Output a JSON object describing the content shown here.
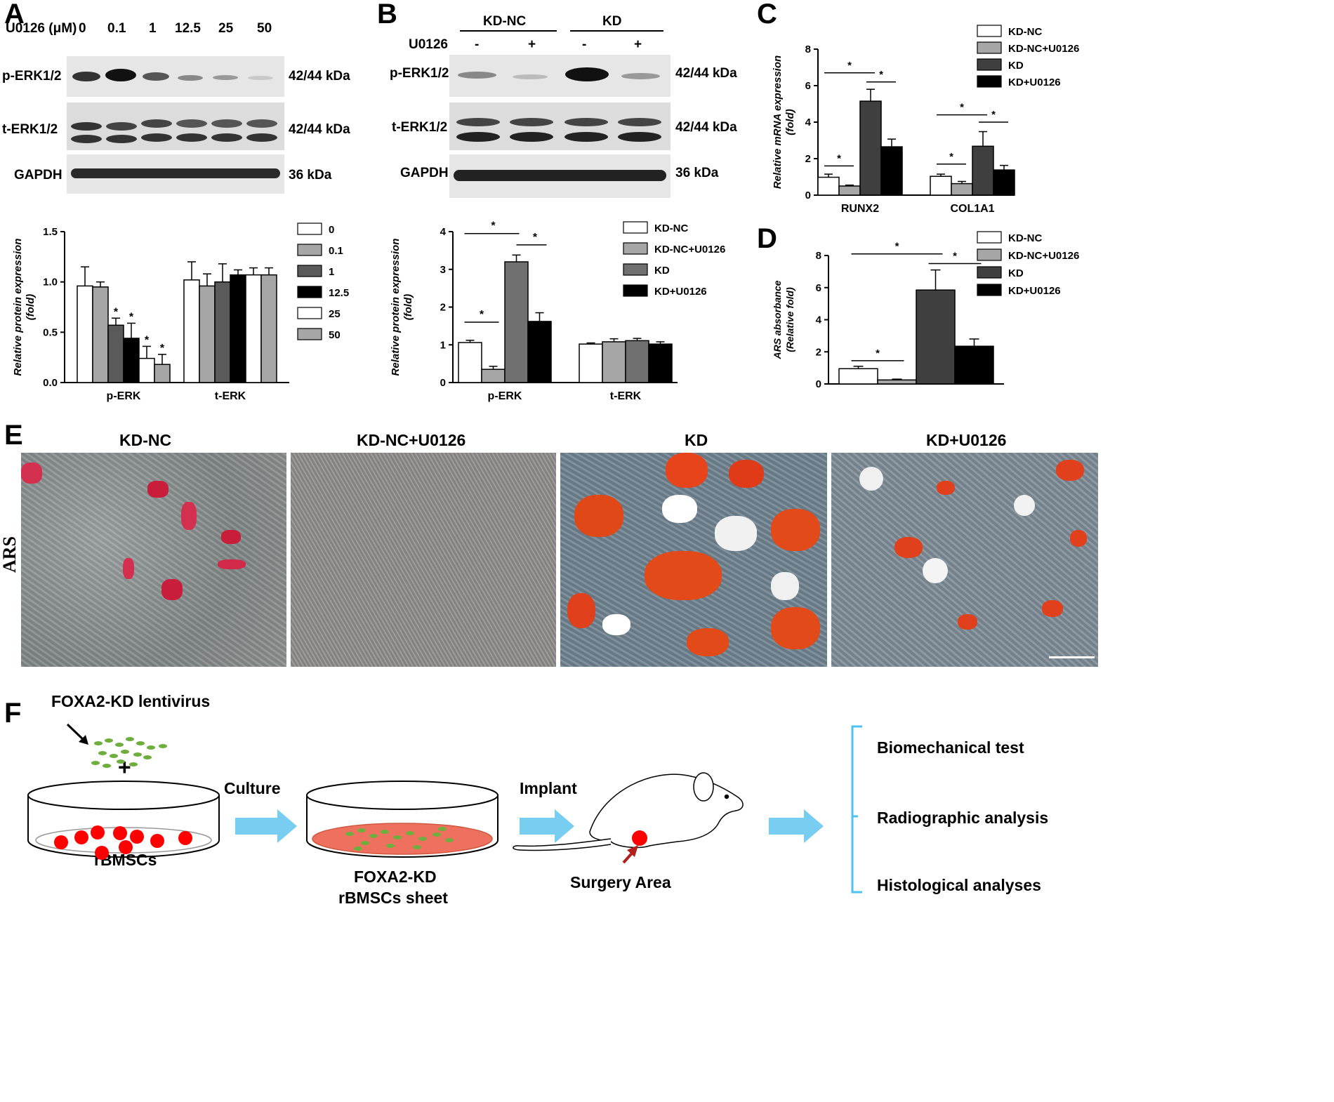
{
  "panels": {
    "A": {
      "letter": "A",
      "treatment_label": "U0126 (μM)",
      "doses": [
        "0",
        "0.1",
        "1",
        "12.5",
        "25",
        "50"
      ],
      "rows": [
        {
          "name": "p-ERK1/2",
          "size": "42/44 kDa"
        },
        {
          "name": "t-ERK1/2",
          "size": "42/44 kDa"
        },
        {
          "name": "GAPDH",
          "size": "36 kDa"
        }
      ]
    },
    "B": {
      "letter": "B",
      "group1": "KD-NC",
      "group2": "KD",
      "treatment_label": "U0126",
      "signs": [
        "-",
        "+",
        "-",
        "+"
      ],
      "rows": [
        {
          "name": "p-ERK1/2",
          "size": "42/44 kDa"
        },
        {
          "name": "t-ERK1/2",
          "size": "42/44 kDa"
        },
        {
          "name": "GAPDH",
          "size": "36 kDa"
        }
      ]
    },
    "C": {
      "letter": "C"
    },
    "D": {
      "letter": "D"
    },
    "E": {
      "letter": "E",
      "row_label": "ARS",
      "images": [
        "KD-NC",
        "KD-NC+U0126",
        "KD",
        "KD+U0126"
      ]
    },
    "F": {
      "letter": "F",
      "virus": "FOXA2-KD lentivirus",
      "plus": "+",
      "cells": "rBMSCs",
      "culture": "Culture",
      "sheet_line1": "FOXA2-KD",
      "sheet_line2": "rBMSCs sheet",
      "implant": "Implant",
      "surgery": "Surgery Area",
      "outcomes": [
        "Biomechanical test",
        "Radiographic analysis",
        "Histological analyses"
      ]
    }
  },
  "chart_data": [
    {
      "id": "A-chart",
      "type": "bar",
      "ylabel": "Relative protein expression (fold)",
      "ylim": [
        0,
        1.5
      ],
      "yticks": [
        "0.0",
        "0.5",
        "1.0",
        "1.5"
      ],
      "categories": [
        "p-ERK",
        "t-ERK"
      ],
      "series": [
        {
          "name": "0",
          "values": [
            0.96,
            1.02
          ],
          "errors": [
            0.19,
            0.18
          ],
          "color": "#ffffff"
        },
        {
          "name": "0.1",
          "values": [
            0.95,
            0.96
          ],
          "errors": [
            0.05,
            0.12
          ],
          "color": "#a6a6a6"
        },
        {
          "name": "1",
          "values": [
            0.57,
            1.0
          ],
          "errors": [
            0.07,
            0.18
          ],
          "color": "#5a5a5a"
        },
        {
          "name": "12.5",
          "values": [
            0.44,
            1.07
          ],
          "errors": [
            0.15,
            0.05
          ],
          "color": "#000000"
        },
        {
          "name": "25",
          "values": [
            0.24,
            1.07
          ],
          "errors": [
            0.12,
            0.07
          ],
          "color": "#ffffff"
        },
        {
          "name": "50",
          "values": [
            0.18,
            1.07
          ],
          "errors": [
            0.1,
            0.07
          ],
          "color": "#a6a6a6"
        }
      ],
      "annotations": [
        "*",
        "*",
        "*",
        "*"
      ],
      "legend": "right"
    },
    {
      "id": "B-chart",
      "type": "bar",
      "ylabel": "Relative protein expression (fold)",
      "ylim": [
        0,
        4
      ],
      "yticks": [
        "0",
        "1",
        "2",
        "3",
        "4"
      ],
      "categories": [
        "p-ERK",
        "t-ERK"
      ],
      "series": [
        {
          "name": "KD-NC",
          "values": [
            1.06,
            1.02
          ],
          "errors": [
            0.06,
            0.03
          ],
          "color": "#ffffff"
        },
        {
          "name": "KD-NC+U0126",
          "values": [
            0.35,
            1.08
          ],
          "errors": [
            0.08,
            0.08
          ],
          "color": "#a6a6a6"
        },
        {
          "name": "KD",
          "values": [
            3.2,
            1.11
          ],
          "errors": [
            0.18,
            0.06
          ],
          "color": "#707070"
        },
        {
          "name": "KD+U0126",
          "values": [
            1.62,
            1.02
          ],
          "errors": [
            0.23,
            0.06
          ],
          "color": "#000000"
        }
      ],
      "annotations": [
        "*",
        "*",
        "*"
      ],
      "legend": "right"
    },
    {
      "id": "C-chart",
      "type": "bar",
      "ylabel": "Relative mRNA expression (fold)",
      "ylim": [
        0,
        8
      ],
      "yticks": [
        "0",
        "2",
        "4",
        "6",
        "8"
      ],
      "categories": [
        "RUNX2",
        "COL1A1"
      ],
      "series": [
        {
          "name": "KD-NC",
          "values": [
            0.98,
            1.03
          ],
          "errors": [
            0.17,
            0.12
          ],
          "color": "#ffffff"
        },
        {
          "name": "KD-NC+U0126",
          "values": [
            0.5,
            0.63
          ],
          "errors": [
            0.05,
            0.12
          ],
          "color": "#a6a6a6"
        },
        {
          "name": "KD",
          "values": [
            5.15,
            2.68
          ],
          "errors": [
            0.65,
            0.8
          ],
          "color": "#3f3f3f"
        },
        {
          "name": "KD+U0126",
          "values": [
            2.65,
            1.38
          ],
          "errors": [
            0.42,
            0.25
          ],
          "color": "#000000"
        }
      ],
      "annotations": [
        "*",
        "*",
        "*",
        "*",
        "*",
        "*"
      ],
      "legend": "right"
    },
    {
      "id": "D-chart",
      "type": "bar",
      "ylabel": "ARS absorbance (Relative fold)",
      "ylim": [
        0,
        8
      ],
      "yticks": [
        "0",
        "2",
        "4",
        "6",
        "8"
      ],
      "categories": [
        "KD-NC",
        "KD-NC+U0126",
        "KD",
        "KD+U0126"
      ],
      "values": [
        0.95,
        0.25,
        5.85,
        2.35
      ],
      "errors": [
        0.15,
        0.05,
        1.25,
        0.45
      ],
      "colors": [
        "#ffffff",
        "#a6a6a6",
        "#3f3f3f",
        "#000000"
      ],
      "annotations": [
        "*",
        "*",
        "*"
      ],
      "legend": "right"
    }
  ]
}
